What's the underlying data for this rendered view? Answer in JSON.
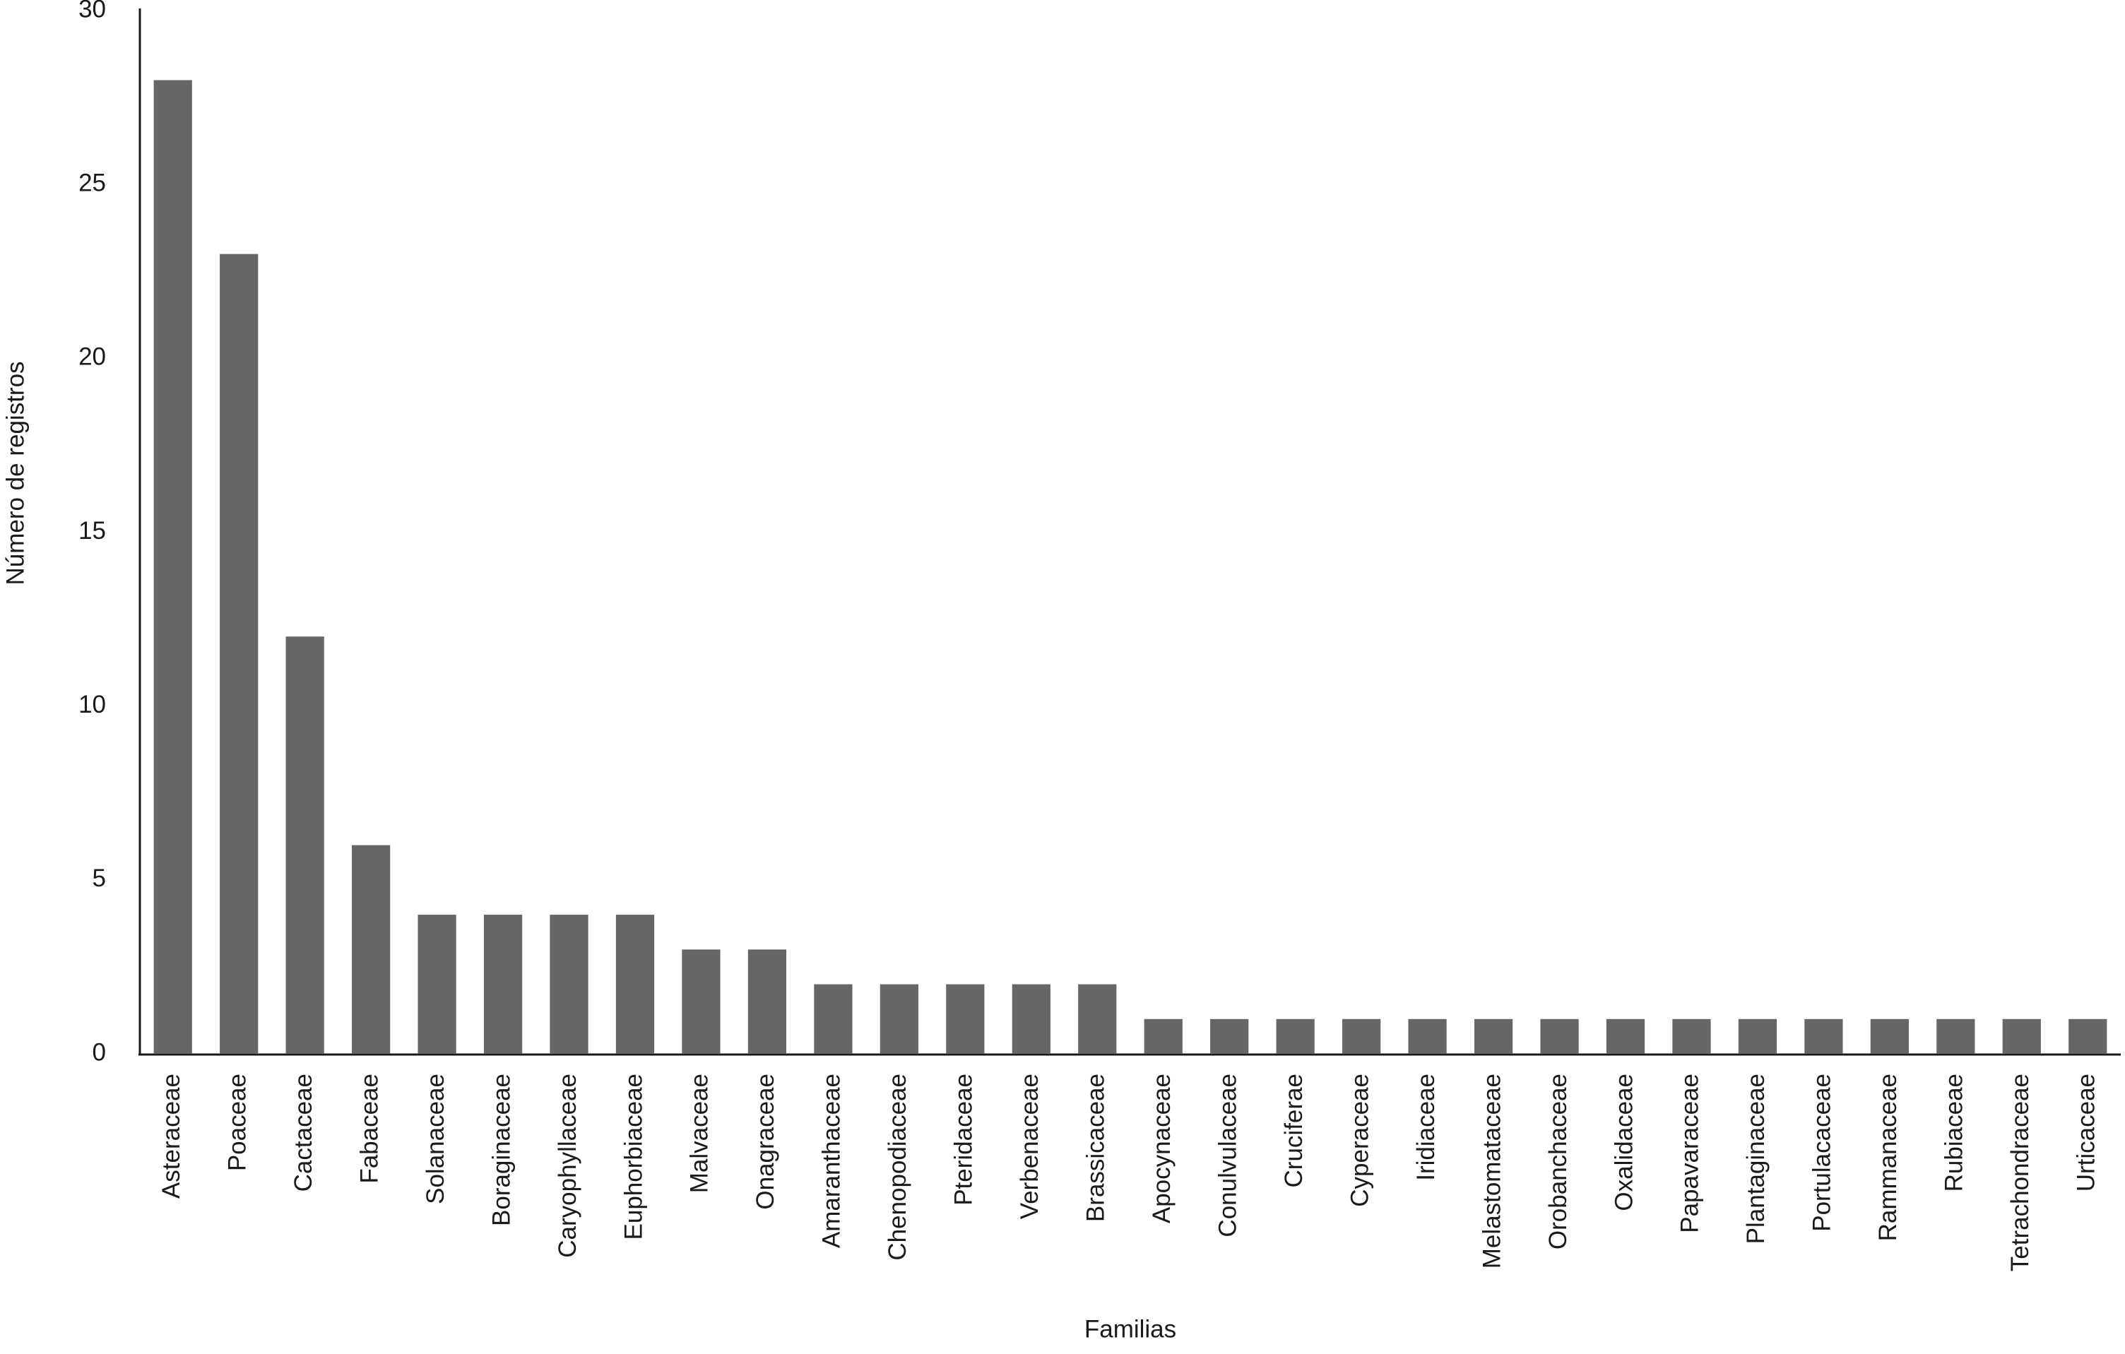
{
  "chart_data": {
    "type": "bar",
    "x_label": "Familias",
    "y_label": "Número de registros",
    "categories": [
      "Asteraceae",
      "Poaceae",
      "Cactaceae",
      "Fabaceae",
      "Solanaceae",
      "Boraginaceae",
      "Caryophyllaceae",
      "Euphorbiaceae",
      "Malvaceae",
      "Onagraceae",
      "Amaranthaceae",
      "Chenopodiaceae",
      "Pteridaceae",
      "Verbenaceae",
      "Brassicaceae",
      "Apocynaceae",
      "Conulvulaceae",
      "Cruciferae",
      "Cyperaceae",
      "Iridiaceae",
      "Melastomataceae",
      "Orobanchaceae",
      "Oxalidaceae",
      "Papavaraceae",
      "Plantaginaceae",
      "Portulacaceae",
      "Rammanaceae",
      "Rubiaceae",
      "Tetrachondraceae",
      "Urticaceae"
    ],
    "values": [
      28,
      23,
      12,
      6,
      4,
      4,
      4,
      4,
      3,
      3,
      2,
      2,
      2,
      2,
      2,
      1,
      1,
      1,
      1,
      1,
      1,
      1,
      1,
      1,
      1,
      1,
      1,
      1,
      1,
      1
    ],
    "color": "#666666",
    "ylim": [
      0,
      30
    ],
    "yticks": [
      0,
      5,
      10,
      15,
      20,
      25,
      30
    ],
    "grid": false
  }
}
